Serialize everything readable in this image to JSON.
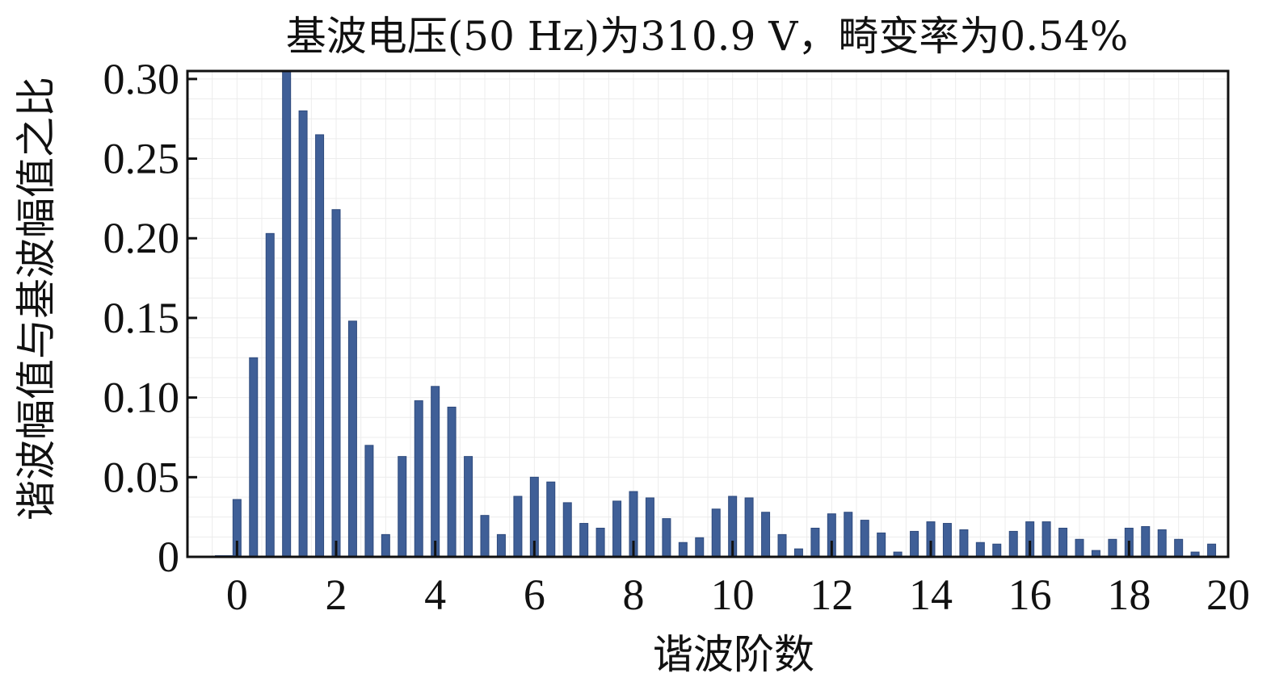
{
  "chart_data": {
    "type": "bar",
    "title": "基波电压(50 Hz)为310.9 V，畸变率为0.54%",
    "xlabel": "谐波阶数",
    "ylabel": "谐波幅值与基波幅值之比",
    "xlim": [
      -1,
      20
    ],
    "ylim": [
      0,
      0.305
    ],
    "x_ticks": [
      0,
      2,
      4,
      6,
      8,
      10,
      12,
      14,
      16,
      18,
      20
    ],
    "x_tick_labels": [
      "0",
      "2",
      "4",
      "6",
      "8",
      "10",
      "12",
      "14",
      "16",
      "18",
      "20"
    ],
    "y_ticks": [
      0,
      0.05,
      0.1,
      0.15,
      0.2,
      0.25,
      0.3
    ],
    "y_tick_labels": [
      "0",
      "0.05",
      "0.10",
      "0.15",
      "0.20",
      "0.25",
      "0.30"
    ],
    "grid": true,
    "bar_color": "#3f5f97",
    "x": [
      0,
      0.333,
      0.667,
      1.0,
      1.333,
      1.667,
      2.0,
      2.333,
      2.667,
      3.0,
      3.333,
      3.667,
      4.0,
      4.333,
      4.667,
      5.0,
      5.333,
      5.667,
      6.0,
      6.333,
      6.667,
      7.0,
      7.333,
      7.667,
      8.0,
      8.333,
      8.667,
      9.0,
      9.333,
      9.667,
      10.0,
      10.333,
      10.667,
      11.0,
      11.333,
      11.667,
      12.0,
      12.333,
      12.667,
      13.0,
      13.333,
      13.667,
      14.0,
      14.333,
      14.667,
      15.0,
      15.333,
      15.667,
      16.0,
      16.333,
      16.667,
      17.0,
      17.333,
      17.667,
      18.0,
      18.333,
      18.667,
      19.0,
      19.333,
      19.667
    ],
    "values": [
      0.036,
      0.125,
      0.203,
      0.305,
      0.28,
      0.265,
      0.218,
      0.148,
      0.07,
      0.014,
      0.063,
      0.098,
      0.107,
      0.094,
      0.063,
      0.026,
      0.014,
      0.038,
      0.05,
      0.047,
      0.034,
      0.021,
      0.018,
      0.035,
      0.041,
      0.037,
      0.024,
      0.009,
      0.012,
      0.03,
      0.038,
      0.037,
      0.028,
      0.014,
      0.005,
      0.018,
      0.027,
      0.028,
      0.023,
      0.015,
      0.003,
      0.016,
      0.022,
      0.021,
      0.017,
      0.009,
      0.008,
      0.016,
      0.022,
      0.022,
      0.018,
      0.011,
      0.004,
      0.011,
      0.018,
      0.019,
      0.017,
      0.011,
      0.003,
      0.008
    ]
  }
}
